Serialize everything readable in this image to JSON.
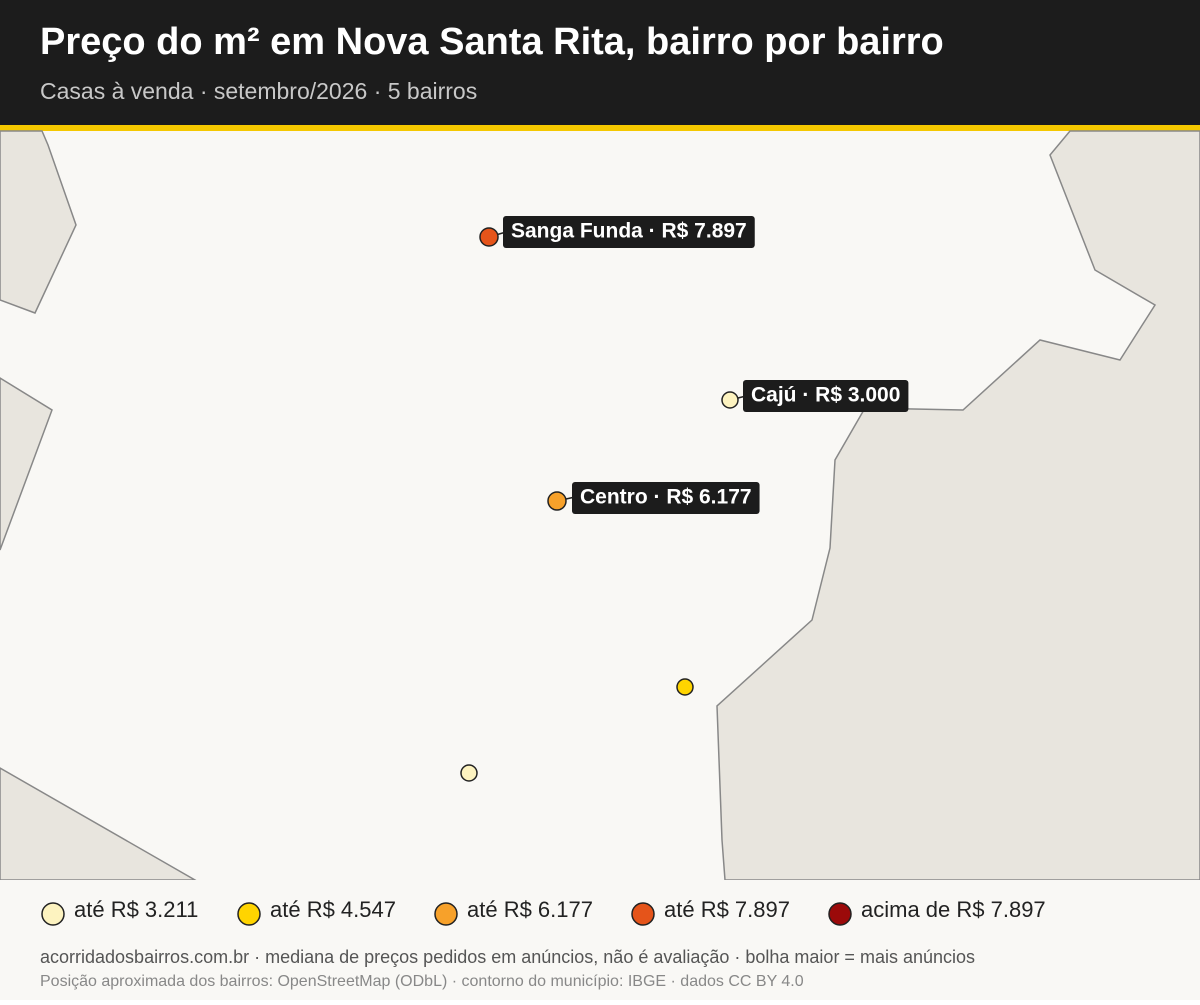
{
  "header": {
    "title": "Preço do m² em Nova Santa Rita, bairro por bairro",
    "subtitle": "Casas à venda · setembro/2026 · 5 bairros"
  },
  "map": {
    "labels": [
      "Sanga Funda · R$ 7.897",
      "Cajú · R$ 3.000",
      "Centro · R$ 6.177"
    ]
  },
  "legend": {
    "items": [
      {
        "label": "até R$ 3.211",
        "color": "#fdf3c0"
      },
      {
        "label": "até R$ 4.547",
        "color": "#ffd400"
      },
      {
        "label": "até R$ 6.177",
        "color": "#f7a12a"
      },
      {
        "label": "até R$ 7.897",
        "color": "#e5541a"
      },
      {
        "label": "acima de R$ 7.897",
        "color": "#9b0a0a"
      }
    ]
  },
  "footer": {
    "lines": [
      "acorridadosbairros.com.br · mediana de preços pedidos em anúncios, não é avaliação · bolha maior = mais anúncios",
      "Posição aproximada dos bairros: OpenStreetMap (ODbL) · contorno do município: IBGE · dados CC BY 4.0"
    ]
  }
}
